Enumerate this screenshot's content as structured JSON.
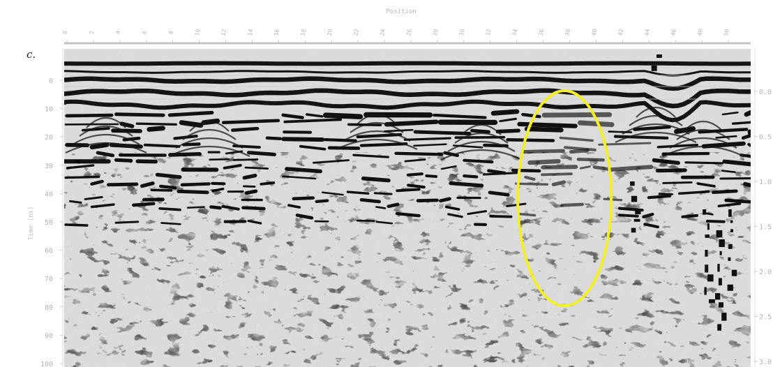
{
  "figure": {
    "panel_label": "c.",
    "top_axis_label": "Position",
    "left_axis_label": "Time (ns)",
    "position_ticks": [
      "0",
      "2",
      "4",
      "6",
      "8",
      "10",
      "12",
      "14",
      "16",
      "18",
      "20",
      "22",
      "24",
      "26",
      "28",
      "30",
      "32",
      "34",
      "36",
      "38",
      "40",
      "42",
      "44",
      "46",
      "48",
      "50"
    ],
    "time_ticks": [
      "0",
      "10",
      "20",
      "30",
      "40",
      "50",
      "60",
      "70",
      "80",
      "90",
      "100"
    ],
    "depth_ticks": [
      "0.0",
      "0.5",
      "1.0",
      "1.5",
      "2.0",
      "2.5",
      "3.0"
    ],
    "highlight": {
      "shape": "ellipse",
      "color": "#f4ee2a"
    }
  }
}
